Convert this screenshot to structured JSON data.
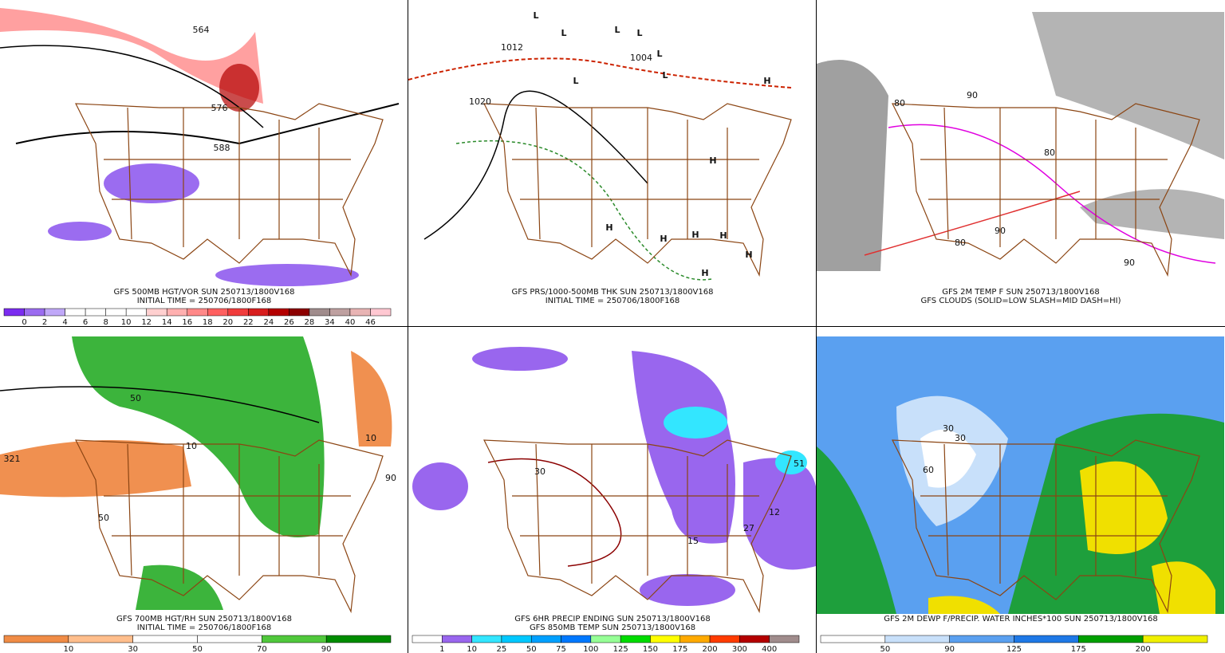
{
  "panels": [
    {
      "captions": [
        "GFS 500MB HGT/VOR SUN 250713/1800V168",
        "INITIAL TIME = 250706/1800F168"
      ],
      "map_labels": [
        "564",
        "576",
        "588"
      ],
      "colorbar": {
        "labels": [
          "0",
          "2",
          "4",
          "6",
          "8",
          "10",
          "12",
          "14",
          "16",
          "18",
          "20",
          "22",
          "24",
          "26",
          "28",
          "34",
          "40",
          "46"
        ],
        "colors": [
          "#7b2cf0",
          "#9b6cf0",
          "#c0a8f8",
          "#ffffff",
          "#ffffff",
          "#ffffff",
          "#ffffff",
          "#ffd0d0",
          "#ffb0b0",
          "#ff8888",
          "#ff6060",
          "#f03c3c",
          "#d81e1e",
          "#b40000",
          "#8c0000",
          "#a08c8c",
          "#bea0a0",
          "#e8b4b4",
          "#ffc8d2"
        ]
      }
    },
    {
      "captions": [
        "GFS PRS/1000-500MB THK SUN 250713/1800V168",
        "INITIAL TIME = 250706/1800F168"
      ],
      "map_labels": [
        "L",
        "L",
        "L",
        "L",
        "L",
        "L",
        "L",
        "H",
        "H",
        "H",
        "H",
        "H",
        "H",
        "H",
        "H",
        "1012",
        "1020",
        "1004"
      ]
    },
    {
      "captions": [
        "GFS 2M TEMP F SUN 250713/1800V168",
        "GFS CLOUDS (SOLID=LOW SLASH=MID DASH=HI)"
      ],
      "map_labels": [
        "80",
        "80",
        "90",
        "90",
        "80",
        "90"
      ]
    },
    {
      "captions": [
        "GFS 700MB HGT/RH SUN 250713/1800V168",
        "INITIAL TIME = 250706/1800F168"
      ],
      "map_labels": [
        "321",
        "50",
        "50",
        "10",
        "10",
        "90"
      ],
      "colorbar": {
        "labels": [
          "10",
          "30",
          "50",
          "70",
          "90"
        ],
        "colors": [
          "#f08c46",
          "#ffbe8c",
          "#ffffff",
          "#ffffff",
          "#50c83c",
          "#008c00"
        ]
      }
    },
    {
      "captions": [
        "GFS 6HR PRECIP ENDING SUN 250713/1800V168",
        "GFS 850MB TEMP SUN 250713/1800V168"
      ],
      "map_labels": [
        "30",
        "51",
        "27",
        "12",
        "15"
      ],
      "colorbar": {
        "labels": [
          "1",
          "10",
          "25",
          "50",
          "75",
          "100",
          "125",
          "150",
          "175",
          "200",
          "300",
          "400"
        ],
        "colors": [
          "#ffffff",
          "#9966ee",
          "#33e6ff",
          "#00c8ff",
          "#00a0ff",
          "#0078ff",
          "#96ff96",
          "#00dc00",
          "#ffff00",
          "#ffaa00",
          "#ff3c00",
          "#b40000",
          "#a08c8c"
        ]
      }
    },
    {
      "captions": [
        "GFS 2M DEWP F/PRECIP. WATER INCHES*100 SUN 250713/1800V168"
      ],
      "map_labels": [
        "30",
        "30",
        "60"
      ],
      "colorbar": {
        "labels": [
          "50",
          "90",
          "125",
          "175",
          "200"
        ],
        "colors": [
          "#ffffff",
          "#c8e0fa",
          "#5aa0f0",
          "#1e78e6",
          "#00a000",
          "#f0f000"
        ]
      }
    }
  ]
}
